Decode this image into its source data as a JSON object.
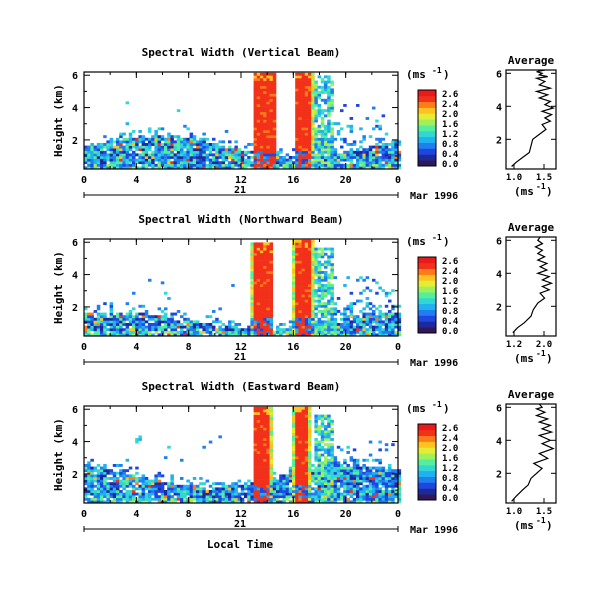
{
  "colormap": [
    "#30185a",
    "#1d2a9c",
    "#1f46e0",
    "#1f7ef0",
    "#1fb1f0",
    "#31d7d4",
    "#55ee9a",
    "#9ff05a",
    "#e6ec33",
    "#ffc21e",
    "#ff7a18",
    "#f2311a",
    "#e81a1a"
  ],
  "common": {
    "x_ticks": [
      "0",
      "4",
      "8",
      "12",
      "16",
      "20",
      "0"
    ],
    "y_ticks": [
      "6",
      "4",
      "2"
    ],
    "ylabel": "Height (km)",
    "day_label": "21",
    "date_label": "Mar 1996",
    "unit_label": "(ms",
    "unit_exp": "-1",
    "colorbar_ticks": [
      "2.6",
      "2.4",
      "2.0",
      "1.6",
      "1.2",
      "0.8",
      "0.4",
      "0.0"
    ],
    "avg_title": "Average",
    "avg_unit": "(ms",
    "avg_y_ticks": [
      "6",
      "4",
      "2"
    ],
    "xlabel": "Local Time"
  },
  "panels": [
    {
      "title": "Spectral Width (Vertical Beam)",
      "avg_x_ticks": [
        "1.0",
        "1.5"
      ]
    },
    {
      "title": "Spectral Width (Northward Beam)",
      "avg_x_ticks": [
        "1.2",
        "2.0"
      ]
    },
    {
      "title": "Spectral Width (Eastward Beam)",
      "avg_x_ticks": [
        "1.0",
        "1.5"
      ]
    }
  ],
  "chart_data": [
    {
      "type": "heatmap",
      "title": "Spectral Width (Vertical Beam)",
      "xlabel": "",
      "ylabel": "Height (km)",
      "xlim": [
        0,
        24
      ],
      "ylim": [
        0.2,
        6.2
      ],
      "x_ticks_hours": [
        0,
        4,
        8,
        12,
        16,
        20,
        24
      ],
      "colorbar": {
        "label": "(ms-1)",
        "range": [
          0.0,
          2.6
        ]
      },
      "features": [
        {
          "name": "background band below 2 km",
          "hours": [
            0,
            24
          ],
          "top_km": [
            1.0,
            2.3
          ],
          "value": 0.8
        },
        {
          "name": "convective column",
          "hours": [
            12.8,
            14.6
          ],
          "top_km": 6.2,
          "value": 2.6
        },
        {
          "name": "convective column",
          "hours": [
            15.9,
            17.4
          ],
          "top_km": 6.2,
          "value": 2.6
        },
        {
          "name": "cyan column",
          "hours": [
            17.6,
            19.0
          ],
          "top_km": 6.0,
          "value": 1.4
        },
        {
          "name": "scattered echoes",
          "hours": [
            19.0,
            23.0
          ],
          "top_km": 4.5,
          "value": 0.6
        }
      ]
    },
    {
      "type": "line",
      "title": "Average",
      "xlabel": "(ms-1)",
      "xlim": [
        0.9,
        1.8
      ],
      "ylim": [
        0.2,
        6.2
      ],
      "x": [
        1.0,
        1.08,
        1.2,
        1.32,
        1.35,
        1.38,
        1.5,
        1.62,
        1.55,
        1.7,
        1.6,
        1.72,
        1.55,
        1.75,
        1.6,
        1.7,
        1.5,
        1.65,
        1.45,
        1.7,
        1.5,
        1.6,
        1.45,
        1.65,
        1.5,
        1.55,
        1.45,
        1.6
      ],
      "y": [
        0.35,
        0.6,
        0.9,
        1.2,
        1.6,
        2.0,
        2.3,
        2.6,
        2.9,
        3.1,
        3.3,
        3.5,
        3.7,
        3.9,
        4.1,
        4.3,
        4.5,
        4.7,
        4.9,
        5.1,
        5.3,
        5.5,
        5.7,
        5.8,
        5.9,
        6.0,
        6.1,
        6.2
      ]
    },
    {
      "type": "heatmap",
      "title": "Spectral Width (Northward Beam)",
      "xlabel": "",
      "ylabel": "Height (km)",
      "xlim": [
        0,
        24
      ],
      "ylim": [
        0.2,
        6.2
      ],
      "x_ticks_hours": [
        0,
        4,
        8,
        12,
        16,
        20,
        24
      ],
      "colorbar": {
        "label": "(ms-1)",
        "range": [
          0.0,
          2.6
        ]
      },
      "features": [
        {
          "name": "background band below 2 km",
          "hours": [
            0,
            24
          ],
          "top_km": [
            0.8,
            1.8
          ],
          "value": 0.8
        },
        {
          "name": "convective column",
          "hours": [
            12.6,
            14.4
          ],
          "top_km": 6.0,
          "value": 2.6
        },
        {
          "name": "convective column",
          "hours": [
            15.8,
            17.4
          ],
          "top_km": 6.2,
          "value": 2.6
        },
        {
          "name": "cyan column",
          "hours": [
            17.6,
            19.0
          ],
          "top_km": 5.8,
          "value": 1.4
        },
        {
          "name": "scattered echoes",
          "hours": [
            19.0,
            23.5
          ],
          "top_km": 4.0,
          "value": 0.6
        }
      ]
    },
    {
      "type": "line",
      "title": "Average",
      "xlabel": "(ms-1)",
      "xlim": [
        1.0,
        2.1
      ],
      "ylim": [
        0.2,
        6.2
      ],
      "x": [
        1.15,
        1.25,
        1.4,
        1.55,
        1.6,
        1.7,
        1.85,
        1.75,
        1.95,
        1.8,
        2.0,
        1.8,
        1.95,
        1.7,
        1.9,
        1.75,
        1.9,
        1.7,
        1.85,
        1.7,
        1.8,
        1.65,
        1.8,
        1.7,
        1.75
      ],
      "y": [
        0.4,
        0.7,
        1.0,
        1.4,
        1.8,
        2.2,
        2.5,
        2.8,
        3.0,
        3.2,
        3.4,
        3.6,
        3.8,
        4.0,
        4.2,
        4.4,
        4.6,
        4.8,
        5.0,
        5.2,
        5.4,
        5.6,
        5.8,
        6.0,
        6.2
      ]
    },
    {
      "type": "heatmap",
      "title": "Spectral Width (Eastward Beam)",
      "xlabel": "Local Time",
      "ylabel": "Height (km)",
      "xlim": [
        0,
        24
      ],
      "ylim": [
        0.2,
        6.2
      ],
      "x_ticks_hours": [
        0,
        4,
        8,
        12,
        16,
        20,
        24
      ],
      "colorbar": {
        "label": "(ms-1)",
        "range": [
          0.0,
          2.6
        ]
      },
      "features": [
        {
          "name": "background band below 2.5 km",
          "hours": [
            0,
            24
          ],
          "top_km": [
            1.3,
            2.6
          ],
          "value": 0.8
        },
        {
          "name": "convective column",
          "hours": [
            12.8,
            14.2
          ],
          "top_km": 6.2,
          "value": 2.6
        },
        {
          "name": "convective column",
          "hours": [
            15.8,
            17.2
          ],
          "top_km": 6.2,
          "value": 2.6
        },
        {
          "name": "cyan column",
          "hours": [
            17.6,
            19.0
          ],
          "top_km": 5.8,
          "value": 1.4
        },
        {
          "name": "scattered echoes",
          "hours": [
            19.0,
            23.5
          ],
          "top_km": 4.2,
          "value": 0.6
        }
      ]
    },
    {
      "type": "line",
      "title": "Average",
      "xlabel": "(ms-1)",
      "xlim": [
        0.9,
        1.8
      ],
      "ylim": [
        0.2,
        6.2
      ],
      "x": [
        1.0,
        1.08,
        1.2,
        1.3,
        1.35,
        1.45,
        1.55,
        1.4,
        1.65,
        1.5,
        1.75,
        1.55,
        1.7,
        1.5,
        1.72,
        1.55,
        1.7,
        1.5,
        1.65,
        1.45,
        1.6,
        1.45,
        1.55,
        1.5
      ],
      "y": [
        0.3,
        0.6,
        1.0,
        1.3,
        1.7,
        2.0,
        2.3,
        2.6,
        2.9,
        3.2,
        3.5,
        3.8,
        4.0,
        4.3,
        4.5,
        4.7,
        4.9,
        5.1,
        5.3,
        5.5,
        5.7,
        5.9,
        6.0,
        6.2
      ]
    }
  ]
}
